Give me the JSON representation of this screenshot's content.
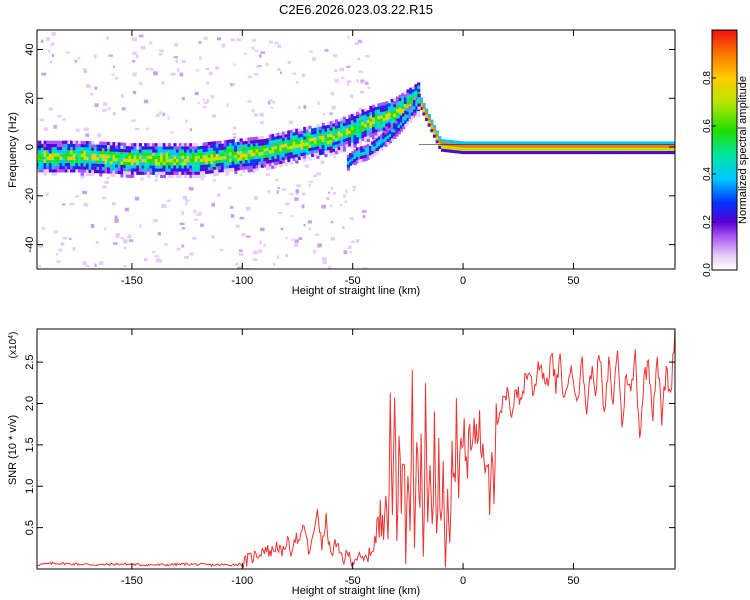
{
  "title": "C2E6.2026.023.03.22.R15",
  "chart_data": [
    {
      "type": "heatmap",
      "xlabel": "Height of straight line (km)",
      "ylabel": "Frequency (Hz)",
      "xlim": [
        -193,
        96
      ],
      "ylim": [
        -50,
        48
      ],
      "xticks": [
        -150,
        -100,
        -50,
        0,
        50
      ],
      "yticks": [
        -40,
        -20,
        0,
        20,
        40
      ],
      "ridge": {
        "x": [
          -193,
          -175,
          -160,
          -150,
          -140,
          -130,
          -120,
          -110,
          -100,
          -90,
          -80,
          -70,
          -60,
          -50,
          -45,
          -40,
          -35,
          -30,
          -25,
          -20,
          -10,
          0,
          10,
          20,
          40,
          60,
          80,
          96
        ],
        "y": [
          -4,
          -4,
          -4.5,
          -5,
          -5,
          -5,
          -5,
          -4,
          -3,
          -2,
          0,
          2,
          4,
          7,
          9,
          11,
          12,
          14,
          17,
          20,
          1,
          0,
          0,
          0,
          0,
          0,
          0,
          0
        ]
      },
      "branch": {
        "x": [
          -52,
          -48,
          -44,
          -40,
          -36,
          -32,
          -28,
          -24,
          -20
        ],
        "y": [
          -6,
          -3,
          -2,
          0,
          3,
          6,
          10,
          14,
          19
        ]
      },
      "colorbar": {
        "label": "Normalized spectral amplitude",
        "range": [
          0,
          1
        ],
        "ticks": [
          "0.0",
          "0.2",
          "0.4",
          "0.6",
          "0.8"
        ],
        "tick_values": [
          0,
          0.2,
          0.4,
          0.6,
          0.8
        ],
        "colors": [
          "#ffffff",
          "#e5cdf7",
          "#a855f7",
          "#5b00d4",
          "#0033ff",
          "#00c8ff",
          "#00e6a0",
          "#22dd00",
          "#b8e600",
          "#ffcc00",
          "#ff7700",
          "#ee1111"
        ]
      }
    },
    {
      "type": "line",
      "xlabel": "Height of straight line (km)",
      "ylabel": "SNR (10 * v/v)",
      "scale_label": "(x10",
      "scale_exp": "4",
      "scale_close": ")",
      "xlim": [
        -193,
        96
      ],
      "ylim": [
        0,
        2.9
      ],
      "xticks": [
        -150,
        -100,
        -50,
        0,
        50
      ],
      "yticks": [
        0.5,
        1.0,
        1.5,
        2.0,
        2.5
      ],
      "ytick_labels": [
        "0.5",
        "1.0",
        "1.5",
        "2.0",
        "2.5"
      ],
      "series": [
        {
          "name": "SNR",
          "color": "#ee3333",
          "x": [
            -193,
            -185,
            -175,
            -165,
            -155,
            -145,
            -135,
            -125,
            -115,
            -105,
            -100,
            -97,
            -93,
            -90,
            -87,
            -84,
            -82,
            -80,
            -78,
            -76,
            -74,
            -72,
            -70,
            -68,
            -66,
            -64,
            -62,
            -60,
            -58,
            -56,
            -54,
            -52,
            -50,
            -48,
            -46,
            -44,
            -42,
            -40,
            -38,
            -36,
            -35,
            -34,
            -33,
            -32,
            -31,
            -30,
            -29,
            -28,
            -27,
            -26,
            -25,
            -24,
            -23,
            -22,
            -21,
            -20,
            -19,
            -18,
            -17,
            -16,
            -15,
            -14,
            -13,
            -12,
            -11,
            -10,
            -9,
            -8,
            -7,
            -6,
            -5,
            -4,
            -3,
            -2,
            -1,
            0,
            1,
            2,
            3,
            4,
            5,
            6,
            7,
            8,
            9,
            10,
            11,
            12,
            13,
            14,
            15,
            16,
            18,
            20,
            22,
            24,
            26,
            28,
            30,
            32,
            34,
            36,
            38,
            40,
            42,
            44,
            46,
            48,
            50,
            52,
            54,
            56,
            58,
            60,
            62,
            64,
            66,
            68,
            70,
            72,
            74,
            76,
            78,
            80,
            82,
            84,
            86,
            88,
            90,
            92,
            94,
            96
          ],
          "values": [
            0.05,
            0.07,
            0.06,
            0.05,
            0.06,
            0.05,
            0.05,
            0.06,
            0.05,
            0.05,
            0.06,
            0.12,
            0.18,
            0.25,
            0.2,
            0.3,
            0.15,
            0.35,
            0.22,
            0.4,
            0.3,
            0.55,
            0.2,
            0.35,
            0.75,
            0.25,
            0.6,
            0.15,
            0.3,
            0.2,
            0.12,
            0.18,
            0.1,
            0.15,
            0.1,
            0.12,
            0.2,
            0.3,
            0.5,
            0.7,
            1.2,
            0.4,
            1.8,
            0.6,
            2.3,
            0.3,
            1.9,
            0.5,
            1.6,
            0.3,
            1.4,
            0.8,
            2.2,
            0.4,
            1.7,
            0.6,
            1.5,
            0.3,
            1.9,
            0.5,
            1.3,
            0.2,
            1.8,
            0.6,
            1.4,
            0.3,
            1.5,
            0.1,
            1.2,
            0.5,
            1.6,
            1.0,
            1.8,
            1.2,
            1.5,
            1.4,
            1.6,
            1.2,
            1.7,
            1.3,
            1.9,
            1.5,
            1.8,
            1.4,
            1.6,
            1.2,
            1.5,
            0.9,
            1.6,
            1.1,
            1.9,
            1.7,
            2.0,
            2.1,
            1.9,
            2.2,
            2.0,
            2.3,
            2.4,
            2.1,
            2.5,
            2.4,
            2.2,
            2.6,
            2.2,
            2.5,
            2.0,
            2.4,
            2.3,
            2.1,
            2.5,
            1.9,
            2.4,
            2.2,
            2.6,
            1.8,
            2.5,
            2.0,
            2.7,
            1.7,
            2.4,
            2.1,
            2.6,
            1.6,
            2.3,
            2.5,
            1.9,
            2.6,
            1.8,
            2.4,
            2.1,
            2.9
          ]
        }
      ]
    }
  ]
}
